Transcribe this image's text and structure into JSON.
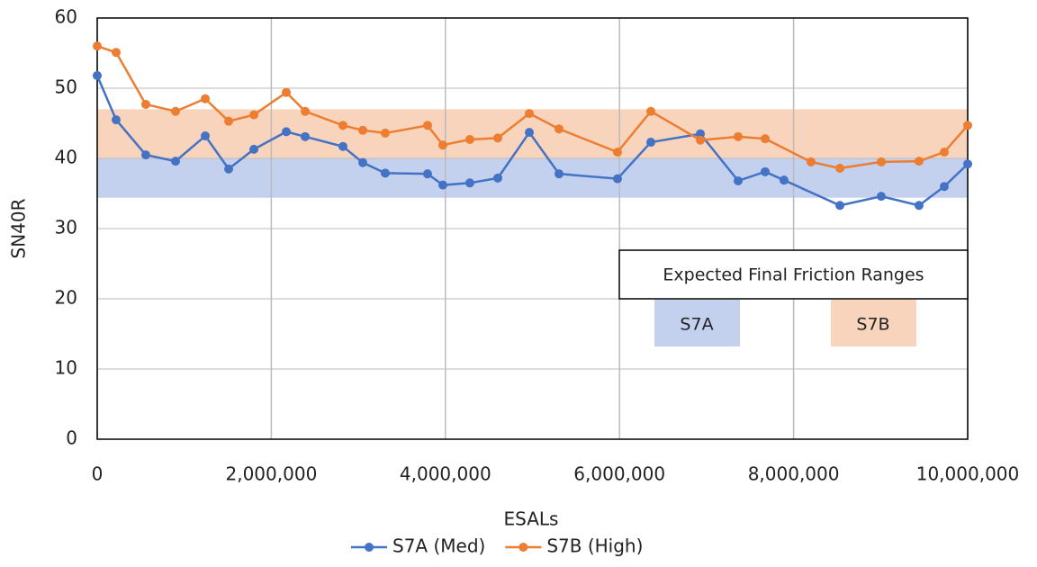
{
  "chart_data": {
    "type": "line",
    "x_label": "ESALs",
    "y_label": "SN40R",
    "xlim": [
      0,
      10000000
    ],
    "ylim": [
      0,
      60
    ],
    "xticks": [
      0,
      {
        "value": 2000000,
        "label": "2,000,000"
      },
      {
        "value": 4000000,
        "label": "4,000,000"
      },
      {
        "value": 6000000,
        "label": "6,000,000"
      },
      {
        "value": 8000000,
        "label": "8,000,000"
      },
      {
        "value": 10000000,
        "label": "10,000,000"
      }
    ],
    "yticks": [
      0,
      10,
      20,
      30,
      40,
      50,
      60
    ],
    "grid": true,
    "legend": "bottom",
    "annotation": "Expected Final Friction Ranges",
    "bands": [
      {
        "name": "S7A",
        "range": [
          34.4,
          40
        ],
        "color": "#c3d1ef"
      },
      {
        "name": "S7B",
        "range": [
          40,
          47
        ],
        "color": "#f9d4bd"
      }
    ],
    "series": [
      {
        "name": "S7A (Med)",
        "color": "#4472c4",
        "x": [
          0,
          217000,
          558000,
          900000,
          1241000,
          1510000,
          1800000,
          2172000,
          2389000,
          2823000,
          3051000,
          3309000,
          3795000,
          3971000,
          4281000,
          4602000,
          4964000,
          5305000,
          5977000,
          6360000,
          6929000,
          7363000,
          7673000,
          7890000,
          8532000,
          9007000,
          9441000,
          9731000,
          10000000
        ],
        "values": [
          51.8,
          45.5,
          40.5,
          39.6,
          43.2,
          38.5,
          41.3,
          43.8,
          43.1,
          41.7,
          39.4,
          37.9,
          37.8,
          36.2,
          36.5,
          37.2,
          43.7,
          37.8,
          37.1,
          42.3,
          43.5,
          36.8,
          38.1,
          36.9,
          33.3,
          34.6,
          33.3,
          36.0,
          39.2
        ]
      },
      {
        "name": "S7B (High)",
        "color": "#ed7d31",
        "x": [
          0,
          217000,
          558000,
          900000,
          1241000,
          1510000,
          1800000,
          2172000,
          2389000,
          2823000,
          3051000,
          3309000,
          3795000,
          3971000,
          4281000,
          4602000,
          4964000,
          5305000,
          5977000,
          6360000,
          6929000,
          7363000,
          7673000,
          8200000,
          8532000,
          9007000,
          9441000,
          9731000,
          10000000
        ],
        "values": [
          56.0,
          55.1,
          47.7,
          46.7,
          48.5,
          45.3,
          46.2,
          49.4,
          46.7,
          44.7,
          44.0,
          43.6,
          44.7,
          41.9,
          42.7,
          42.9,
          46.4,
          44.2,
          40.9,
          46.7,
          42.6,
          43.1,
          42.8,
          39.5,
          38.6,
          39.5,
          39.6,
          40.9,
          44.7
        ]
      }
    ]
  }
}
